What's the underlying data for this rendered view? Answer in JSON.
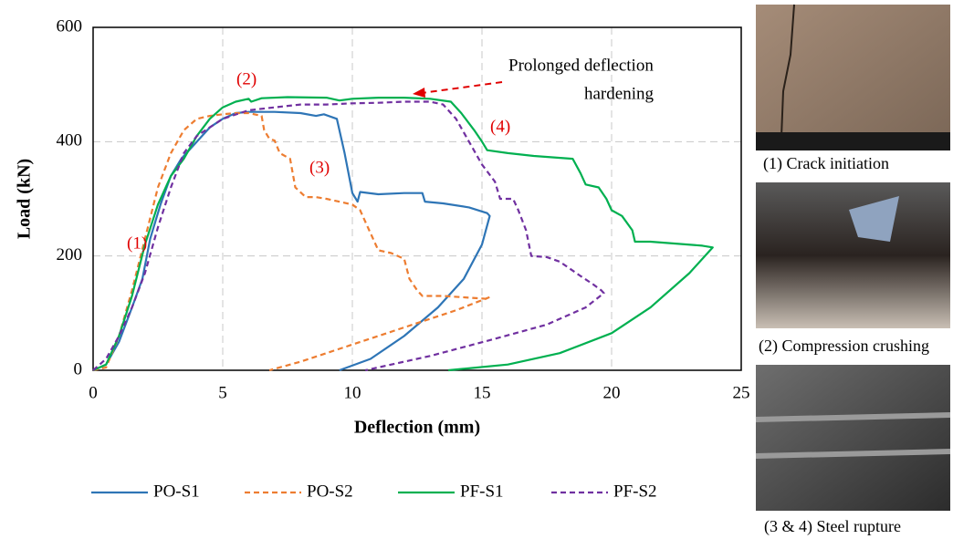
{
  "chart_data": {
    "type": "line",
    "xlabel": "Deflection (mm)",
    "ylabel": "Load (kN)",
    "xlim": [
      0,
      25
    ],
    "ylim": [
      0,
      600
    ],
    "xticks": [
      0,
      5,
      10,
      15,
      20,
      25
    ],
    "yticks": [
      0,
      200,
      400,
      600
    ],
    "grid": true,
    "annotations": [
      "(1)",
      "(2)",
      "(3)",
      "(4)",
      "Prolonged deflection",
      "hardening"
    ],
    "series": [
      {
        "name": "PO-S1",
        "color": "#2e75b6",
        "dash": false,
        "x": [
          0,
          0.5,
          1,
          1.5,
          1.9,
          2.2,
          2.6,
          3.0,
          3.4,
          3.6,
          3.9,
          4.5,
          5,
          5.5,
          6,
          7,
          8,
          8.6,
          8.9,
          9.4,
          9.7,
          10,
          10.2,
          10.3,
          11,
          12,
          12.7,
          12.8,
          13.5,
          14.5,
          15.2,
          15.3,
          15,
          14.3,
          13.3,
          12,
          10.7,
          9.5
        ],
        "values": [
          0,
          10,
          50,
          110,
          160,
          230,
          290,
          340,
          370,
          380,
          395,
          425,
          440,
          450,
          452,
          452,
          450,
          445,
          448,
          440,
          380,
          310,
          295,
          312,
          308,
          310,
          310,
          295,
          292,
          285,
          275,
          270,
          220,
          160,
          110,
          60,
          20,
          0
        ]
      },
      {
        "name": "PO-S2",
        "color": "#ed7d31",
        "dash": true,
        "x": [
          0,
          0.5,
          1,
          1.5,
          2,
          2.5,
          3,
          3.5,
          4,
          4.5,
          5,
          5.5,
          6,
          6.5,
          6.6,
          6.8,
          7,
          7.2,
          7.6,
          7.8,
          8.2,
          8.6,
          9,
          10,
          10.3,
          10.6,
          11,
          11.5,
          12,
          12.2,
          12.5,
          12.7,
          13.5,
          15.2,
          15.3,
          14,
          12,
          10,
          8,
          6.8
        ],
        "values": [
          0,
          5,
          60,
          140,
          230,
          320,
          380,
          420,
          440,
          445,
          448,
          450,
          450,
          445,
          420,
          405,
          402,
          380,
          370,
          320,
          303,
          303,
          300,
          290,
          280,
          250,
          210,
          205,
          195,
          160,
          140,
          130,
          130,
          125,
          128,
          105,
          75,
          45,
          15,
          0
        ]
      },
      {
        "name": "PF-S1",
        "color": "#00b050",
        "dash": false,
        "x": [
          0,
          0.5,
          1,
          1.5,
          2,
          2.5,
          3,
          3.5,
          4,
          4.5,
          5,
          5.5,
          6,
          6.1,
          6.5,
          7.5,
          9,
          9.5,
          10,
          11,
          12,
          13,
          13.8,
          14.2,
          14.7,
          15,
          15.2,
          16,
          17,
          18.5,
          18.8,
          19,
          19.5,
          19.8,
          20,
          20.4,
          20.8,
          20.9,
          21.5,
          23.5,
          23.9,
          23,
          21.5,
          20,
          18,
          16,
          13.7
        ],
        "values": [
          0,
          10,
          60,
          130,
          220,
          290,
          340,
          370,
          410,
          440,
          460,
          470,
          475,
          470,
          476,
          478,
          477,
          472,
          475,
          477,
          477,
          475,
          470,
          450,
          420,
          400,
          385,
          380,
          375,
          370,
          345,
          325,
          320,
          300,
          280,
          270,
          245,
          225,
          225,
          218,
          215,
          170,
          110,
          65,
          30,
          10,
          0
        ]
      },
      {
        "name": "PF-S2",
        "color": "#7030a0",
        "dash": true,
        "x": [
          0,
          0.5,
          1,
          1.5,
          2,
          2.5,
          3,
          3.5,
          4,
          5,
          6,
          7,
          8,
          9,
          10,
          11,
          12,
          13,
          13.5,
          14,
          14.5,
          15,
          15.5,
          15.7,
          16.2,
          16.4,
          16.7,
          16.9,
          17.5,
          18,
          18.8,
          19.3,
          19.6,
          19.7,
          19,
          17.5,
          15.5,
          13,
          10.5
        ],
        "values": [
          0,
          20,
          60,
          110,
          170,
          250,
          320,
          380,
          410,
          440,
          455,
          460,
          465,
          465,
          467,
          468,
          470,
          470,
          465,
          440,
          400,
          360,
          330,
          300,
          300,
          280,
          245,
          200,
          198,
          190,
          165,
          150,
          140,
          135,
          110,
          80,
          55,
          25,
          0
        ]
      }
    ]
  },
  "photos": [
    {
      "caption": "(1) Crack initiation"
    },
    {
      "caption": "(2) Compression crushing"
    },
    {
      "caption": "(3 & 4) Steel rupture"
    }
  ]
}
